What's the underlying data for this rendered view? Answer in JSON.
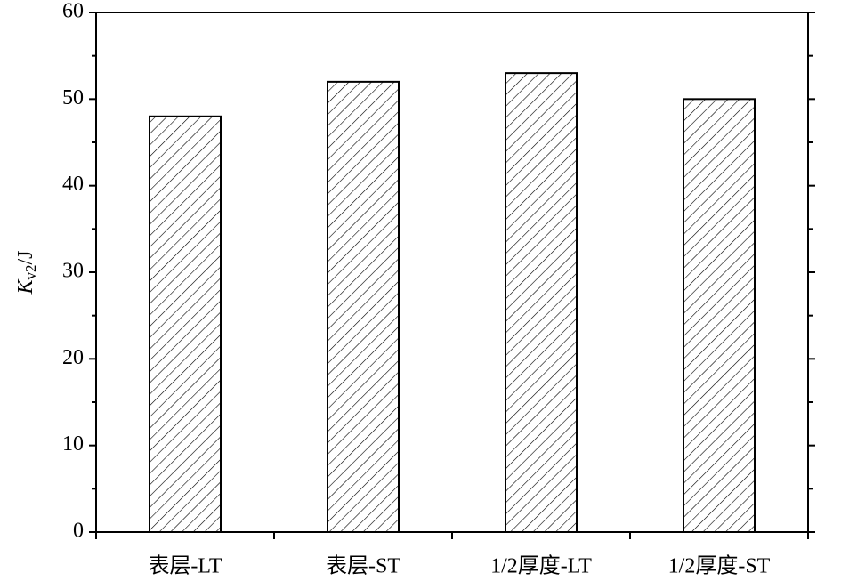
{
  "chart_data": {
    "type": "bar",
    "ylabel": [
      "K",
      "v2",
      "/J"
    ],
    "categories": [
      "表层-LT",
      "表层-ST",
      "1/2厚度-LT",
      "1/2厚度-ST"
    ],
    "values": [
      48,
      52,
      53,
      50
    ],
    "color": "#000000",
    "ylim": [
      0,
      60
    ],
    "yticks": [
      0,
      10,
      20,
      30,
      40,
      50,
      60
    ]
  }
}
